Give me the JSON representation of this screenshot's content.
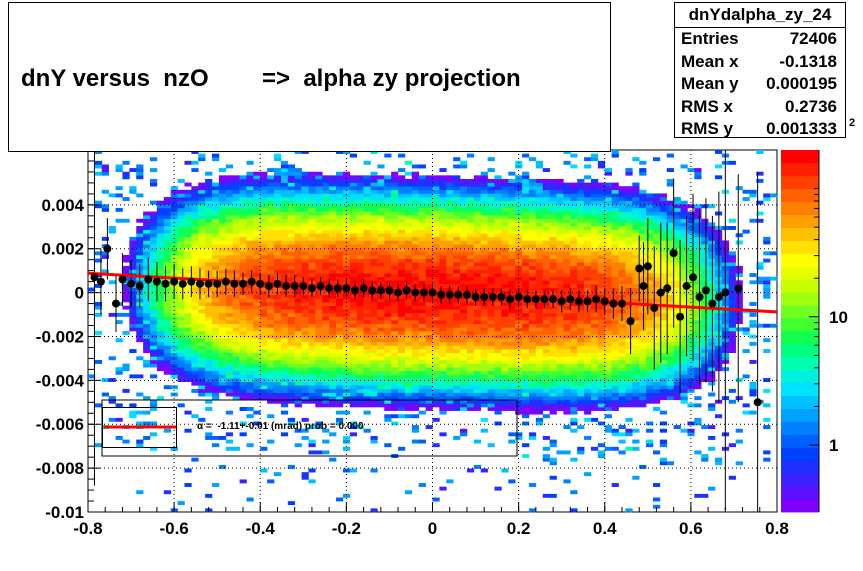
{
  "chart_data": {
    "type": "heatmap",
    "title": "dnY versus  nzO        =>  alpha zy projection",
    "xlabel": "",
    "ylabel": "",
    "xlim": [
      -0.8,
      0.8
    ],
    "ylim": [
      -0.01,
      0.0065
    ],
    "x_ticks": [
      "-0.8",
      "-0.6",
      "-0.4",
      "-0.2",
      "0",
      "0.2",
      "0.4",
      "0.6",
      "0.8"
    ],
    "y_ticks": [
      "-0.01",
      "-0.008",
      "-0.006",
      "-0.004",
      "-0.002",
      "0",
      "0.002",
      "0.004"
    ],
    "colorbar_ticks": [
      "1",
      "10"
    ],
    "colorbar_exponent": "2",
    "colorbar_range": [
      0.3,
      200
    ],
    "log_scale_z": true,
    "grid": true,
    "profile_points": {
      "x": [
        -0.785,
        -0.77,
        -0.755,
        -0.735,
        -0.72,
        -0.7,
        -0.68,
        -0.66,
        -0.64,
        -0.62,
        -0.6,
        -0.58,
        -0.56,
        -0.54,
        -0.52,
        -0.5,
        -0.48,
        -0.46,
        -0.44,
        -0.42,
        -0.4,
        -0.38,
        -0.36,
        -0.34,
        -0.32,
        -0.3,
        -0.28,
        -0.26,
        -0.24,
        -0.22,
        -0.2,
        -0.18,
        -0.16,
        -0.14,
        -0.12,
        -0.1,
        -0.08,
        -0.06,
        -0.04,
        -0.02,
        0.0,
        0.02,
        0.04,
        0.06,
        0.08,
        0.1,
        0.12,
        0.14,
        0.16,
        0.18,
        0.2,
        0.22,
        0.24,
        0.26,
        0.28,
        0.3,
        0.32,
        0.34,
        0.36,
        0.38,
        0.4,
        0.42,
        0.44,
        0.46,
        0.48,
        0.49,
        0.5,
        0.515,
        0.53,
        0.545,
        0.56,
        0.575,
        0.59,
        0.605,
        0.62,
        0.635,
        0.65,
        0.665,
        0.68,
        0.71,
        0.755
      ],
      "y": [
        0.0007,
        0.0005,
        0.002,
        -0.0005,
        0.0006,
        0.0004,
        0.0003,
        0.0006,
        0.0005,
        0.0004,
        0.0005,
        0.0004,
        0.0005,
        0.0004,
        0.0004,
        0.0004,
        0.0005,
        0.0004,
        0.0004,
        0.0005,
        0.0004,
        0.0003,
        0.0004,
        0.0003,
        0.0003,
        0.0003,
        0.0002,
        0.0003,
        0.0002,
        0.0002,
        0.0002,
        0.0001,
        0.0002,
        0.0001,
        0.0001,
        0.0001,
        0.0,
        0.0001,
        0.0,
        0.0,
        0.0,
        -0.0001,
        -0.0001,
        -0.0001,
        -0.0001,
        -0.0002,
        -0.0002,
        -0.0002,
        -0.0002,
        -0.0003,
        -0.0002,
        -0.0003,
        -0.0003,
        -0.0003,
        -0.0003,
        -0.0004,
        -0.0003,
        -0.0004,
        -0.0004,
        -0.0003,
        -0.0004,
        -0.0005,
        -0.0005,
        -0.0013,
        0.0011,
        0.0003,
        0.0012,
        -0.0007,
        0.0,
        0.0002,
        0.0018,
        -0.0011,
        0.0003,
        0.0007,
        -0.0002,
        0.0001,
        -0.0005,
        -0.0002,
        0.0,
        0.0002,
        -0.005
      ],
      "yerr": [
        0.0095,
        0.0015,
        0.0014,
        0.0013,
        0.0012,
        0.0011,
        0.001,
        0.001,
        0.0009,
        0.0008,
        0.0008,
        0.0007,
        0.0007,
        0.0007,
        0.0006,
        0.0006,
        0.0006,
        0.0006,
        0.0005,
        0.0005,
        0.0005,
        0.0005,
        0.0005,
        0.0005,
        0.0005,
        0.0004,
        0.0004,
        0.0004,
        0.0004,
        0.0004,
        0.0004,
        0.0004,
        0.0004,
        0.0004,
        0.0004,
        0.0004,
        0.0004,
        0.0004,
        0.0004,
        0.0004,
        0.0004,
        0.0004,
        0.0004,
        0.0004,
        0.0004,
        0.0004,
        0.0004,
        0.0004,
        0.0004,
        0.0004,
        0.0004,
        0.0004,
        0.0004,
        0.0004,
        0.0004,
        0.0005,
        0.0005,
        0.0005,
        0.0005,
        0.0006,
        0.0006,
        0.0007,
        0.0008,
        0.0015,
        0.0015,
        0.002,
        0.0022,
        0.0028,
        0.0032,
        0.003,
        0.0034,
        0.0035,
        0.0032,
        0.0038,
        0.004,
        0.0042,
        0.004,
        0.0048,
        0.0105,
        0.0052,
        0.0105
      ]
    },
    "fit_line": {
      "x": [
        -0.8,
        0.8
      ],
      "y": [
        0.00088,
        -0.00088
      ]
    },
    "stats": {
      "name": "dnYdalpha_zy_24",
      "rows": [
        {
          "label": "Entries",
          "value": "72406"
        },
        {
          "label": "Mean x",
          "value": "-0.1318"
        },
        {
          "label": "Mean y",
          "value": "0.000195"
        },
        {
          "label": "RMS x",
          "value": "0.2736"
        },
        {
          "label": "RMS y",
          "value": "0.001333"
        }
      ]
    },
    "fit_legend": "α =  -1.11+-0.01 (mrad) prob = 0.000"
  },
  "colors": {
    "fit_line": "#ff0000",
    "markers": "#000000",
    "palette": [
      "#7f00ff",
      "#5f10ff",
      "#3f20ff",
      "#1f30ff",
      "#0040ff",
      "#0060ff",
      "#0080ff",
      "#00a0ff",
      "#00c0ff",
      "#00e0ff",
      "#00f0e0",
      "#00ffb0",
      "#00ff80",
      "#10ff50",
      "#40ff30",
      "#70ff20",
      "#a0ff10",
      "#c8ff00",
      "#e8ff00",
      "#ffff00",
      "#ffe000",
      "#ffc000",
      "#ffa000",
      "#ff8000",
      "#ff6000",
      "#ff4000",
      "#ff2000",
      "#ff0000"
    ]
  }
}
